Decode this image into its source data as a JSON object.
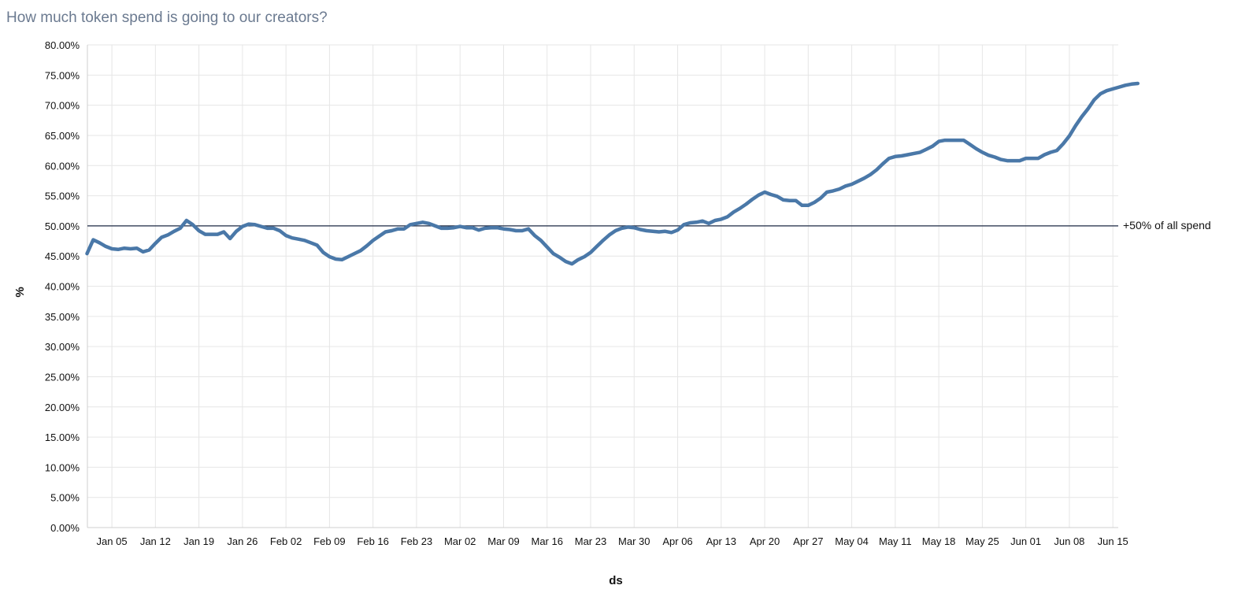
{
  "chart_data": {
    "type": "line",
    "title": "How much token spend is going to our creators?",
    "xlabel": "ds",
    "ylabel": "%",
    "ylim": [
      0,
      80
    ],
    "y_ticks": [
      "0.00%",
      "5.00%",
      "10.00%",
      "15.00%",
      "20.00%",
      "25.00%",
      "30.00%",
      "35.00%",
      "40.00%",
      "45.00%",
      "50.00%",
      "55.00%",
      "60.00%",
      "65.00%",
      "70.00%",
      "75.00%",
      "80.00%"
    ],
    "x_ticks": [
      "Jan 05",
      "Jan 12",
      "Jan 19",
      "Jan 26",
      "Feb 02",
      "Feb 09",
      "Feb 16",
      "Feb 23",
      "Mar 02",
      "Mar 09",
      "Mar 16",
      "Mar 23",
      "Mar 30",
      "Apr 06",
      "Apr 13",
      "Apr 20",
      "Apr 27",
      "May 04",
      "May 11",
      "May 18",
      "May 25",
      "Jun 01",
      "Jun 08",
      "Jun 15"
    ],
    "grid": true,
    "reference_line": {
      "y": 50,
      "label": "+50% of all spend",
      "color": "#1e2a44"
    },
    "series_color": "#4a78a8",
    "series": [
      {
        "x_start": "Jan 01",
        "values": [
          45.4,
          47.7,
          47.2,
          46.6,
          46.2,
          46.1,
          46.3,
          46.2,
          46.3,
          45.7,
          46.0,
          47.1,
          48.1,
          48.5,
          49.1,
          49.6,
          50.9,
          50.2,
          49.2,
          48.6,
          48.6,
          48.6,
          49.0,
          47.9,
          49.1,
          49.9,
          50.3,
          50.2,
          49.9,
          49.6,
          49.6,
          49.2,
          48.4,
          48.0,
          47.8,
          47.6,
          47.2,
          46.8,
          45.6,
          44.9,
          44.5,
          44.4,
          44.9,
          45.4,
          45.9,
          46.7,
          47.6,
          48.3,
          49.0,
          49.2,
          49.5,
          49.5,
          50.2,
          50.4,
          50.6,
          50.4,
          50.0,
          49.6,
          49.6,
          49.7,
          49.9,
          49.7,
          49.7,
          49.3,
          49.6,
          49.7,
          49.7,
          49.5,
          49.4,
          49.2,
          49.2,
          49.5,
          48.4,
          47.6,
          46.5,
          45.4,
          44.8,
          44.1,
          43.7,
          44.4,
          44.9,
          45.6,
          46.6,
          47.6,
          48.5,
          49.2,
          49.6,
          49.8,
          49.7,
          49.4,
          49.2,
          49.1,
          49.0,
          49.1,
          48.9,
          49.3,
          50.2,
          50.5,
          50.6,
          50.8,
          50.4,
          50.9,
          51.1,
          51.5,
          52.3,
          52.9,
          53.6,
          54.4,
          55.1,
          55.6,
          55.2,
          54.9,
          54.3,
          54.2,
          54.2,
          53.4,
          53.4,
          53.9,
          54.6,
          55.6,
          55.8,
          56.1,
          56.6,
          56.9,
          57.4,
          57.9,
          58.5,
          59.3,
          60.3,
          61.2,
          61.5,
          61.6,
          61.8,
          62.0,
          62.2,
          62.7,
          63.2,
          64.0,
          64.2,
          64.2,
          64.2,
          64.2,
          63.5,
          62.8,
          62.2,
          61.7,
          61.4,
          61.0,
          60.8,
          60.8,
          60.8,
          61.2,
          61.2,
          61.2,
          61.8,
          62.2,
          62.5,
          63.6,
          64.9,
          66.6,
          68.1,
          69.4,
          70.9,
          71.9,
          72.4,
          72.7,
          73.0,
          73.3,
          73.5,
          73.6
        ]
      }
    ]
  }
}
